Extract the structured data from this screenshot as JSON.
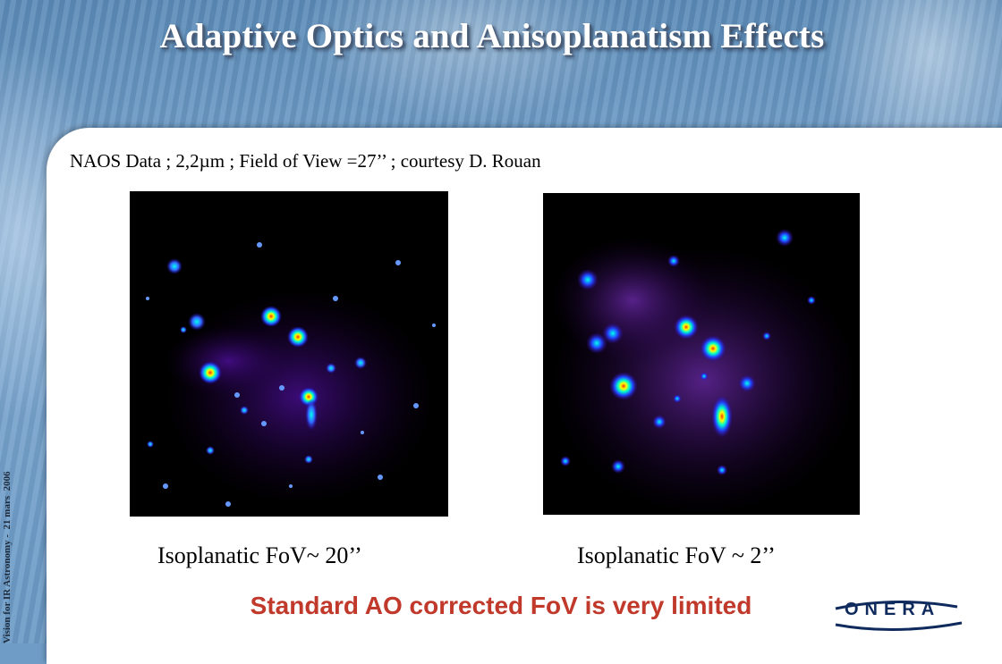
{
  "slide": {
    "title": "Adaptive Optics and Anisoplanatism Effects",
    "subtitle": "NAOS Data ; 2,2µm ; Field of View =27’’ ; courtesy D. Rouan",
    "images": [
      {
        "caption": "Isoplanatic FoV~ 20’’"
      },
      {
        "caption": "Isoplanatic FoV ~ 2’’"
      }
    ],
    "conclusion": "Standard AO corrected FoV is very limited",
    "sidebar_text": "Vision for IR Astronomy -  21 mars  2006",
    "logo": "ONERA"
  },
  "colors": {
    "title": "#ffffff",
    "conclusion": "#c0392b",
    "logo": "#0f2a5c"
  }
}
